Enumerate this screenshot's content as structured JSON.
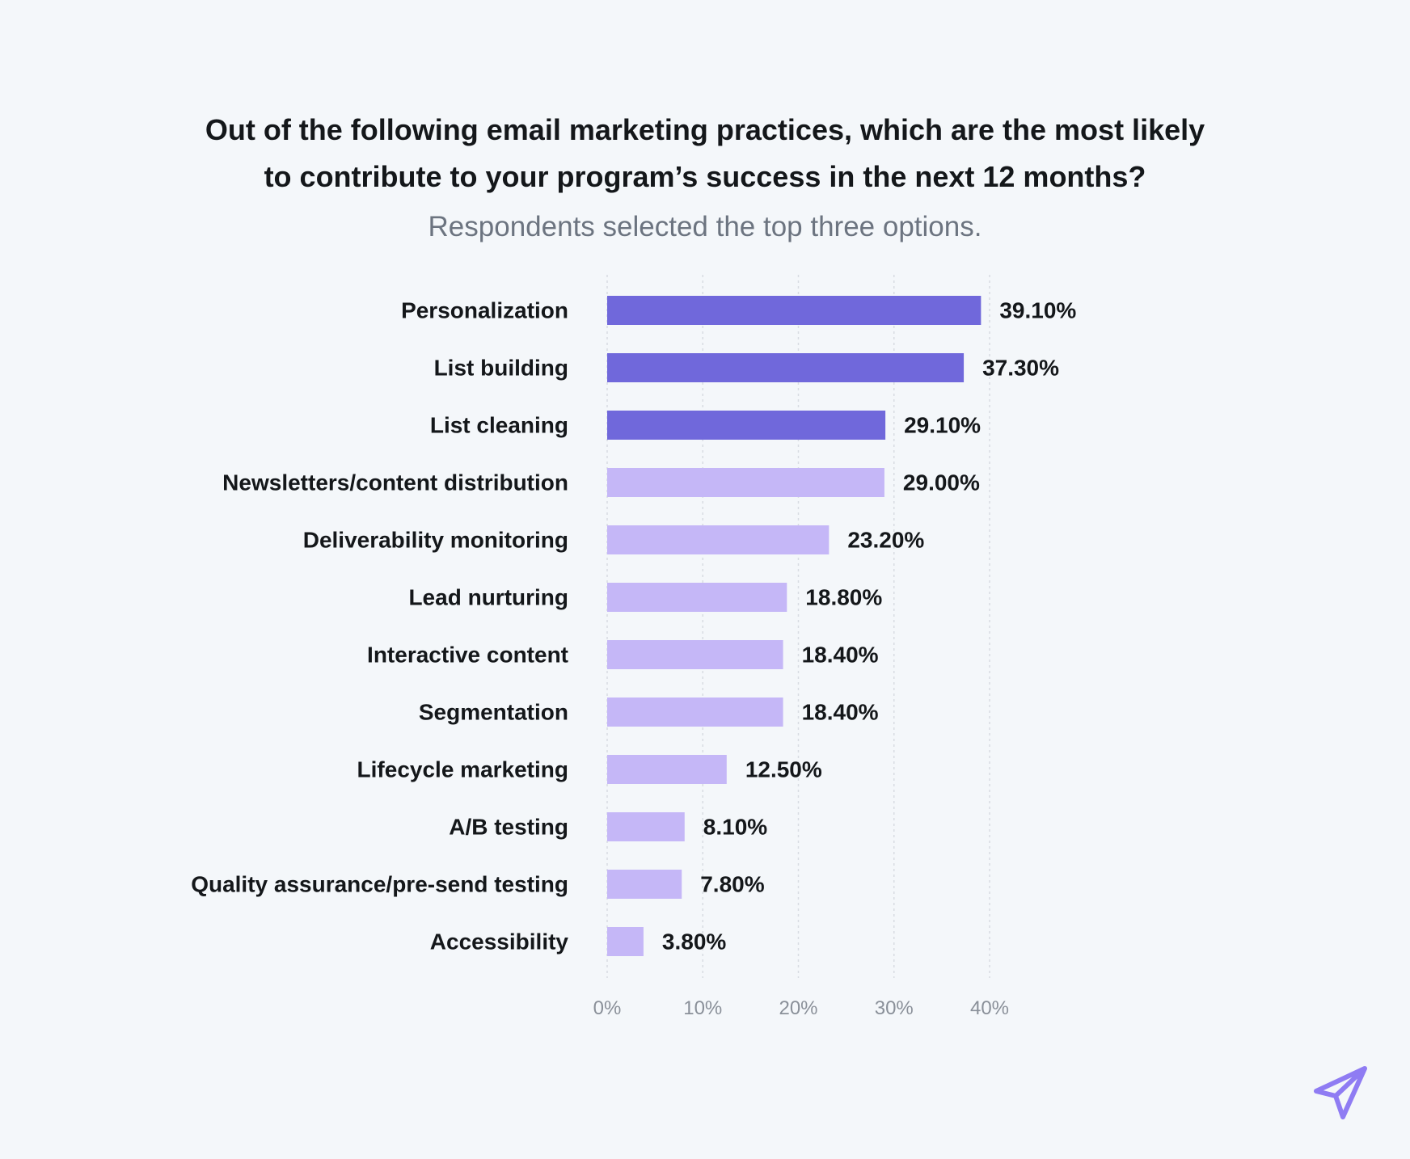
{
  "chart_data": {
    "type": "bar",
    "orientation": "horizontal",
    "title_line1": "Out of the following email marketing practices, which are the most likely",
    "title_line2": "to contribute to your program’s success in the next 12 months?",
    "subtitle": "Respondents selected the top three options.",
    "categories": [
      "Personalization",
      "List building",
      "List cleaning",
      "Newsletters/content distribution",
      "Deliverability monitoring",
      "Lead nurturing",
      "Interactive content",
      "Segmentation",
      "Lifecycle marketing",
      "A/B testing",
      "Quality assurance/pre-send testing",
      "Accessibility"
    ],
    "values": [
      39.1,
      37.3,
      29.1,
      29.0,
      23.2,
      18.8,
      18.4,
      18.4,
      12.5,
      8.1,
      7.8,
      3.8
    ],
    "value_labels": [
      "39.10%",
      "37.30%",
      "29.10%",
      "29.00%",
      "23.20%",
      "18.80%",
      "18.40%",
      "18.40%",
      "12.50%",
      "8.10%",
      "7.80%",
      "3.80%"
    ],
    "highlight": [
      true,
      true,
      true,
      false,
      false,
      false,
      false,
      false,
      false,
      false,
      false,
      false
    ],
    "xlim": [
      0,
      40
    ],
    "x_ticks": [
      0,
      10,
      20,
      30,
      40
    ],
    "x_tick_labels": [
      "0%",
      "10%",
      "20%",
      "30%",
      "40%"
    ],
    "grid": true,
    "colors": {
      "highlight": "#7068db",
      "normal": "#c5b7f7",
      "grid": "#d8dce2"
    }
  },
  "logo": {
    "icon": "paper-plane-icon",
    "color": "#8f7cf3"
  }
}
